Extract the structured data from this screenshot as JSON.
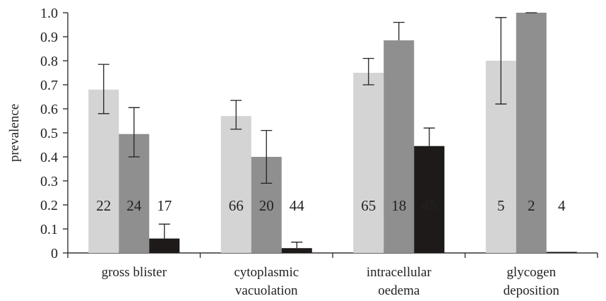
{
  "chart_data": {
    "type": "bar",
    "title": "",
    "xlabel": "",
    "ylabel": "prevalence",
    "ylim": [
      0,
      1.0
    ],
    "yticks": [
      "0",
      "0.1",
      "0.2",
      "0.3",
      "0.4",
      "0.5",
      "0.6",
      "0.7",
      "0.8",
      "0.9",
      "1.0"
    ],
    "grid": false,
    "legend": "none",
    "categories": [
      [
        "gross blister"
      ],
      [
        "cytoplasmic",
        "vacuolation"
      ],
      [
        "intracellular",
        "oedema"
      ],
      [
        "glycogen",
        "deposition"
      ]
    ],
    "series": [
      {
        "color": "#d4d4d4",
        "values": [
          0.68,
          0.57,
          0.75,
          0.8
        ],
        "err_low": [
          0.58,
          0.515,
          0.7,
          0.62
        ],
        "err_high": [
          0.785,
          0.635,
          0.81,
          0.98
        ],
        "n": [
          "22",
          "66",
          "65",
          "5"
        ],
        "n_color": "#222222"
      },
      {
        "color": "#8f8f8f",
        "values": [
          0.495,
          0.4,
          0.885,
          1.0
        ],
        "err_low": [
          0.4,
          0.29,
          null,
          null
        ],
        "err_high": [
          0.605,
          0.51,
          0.96,
          null
        ],
        "n": [
          "24",
          "20",
          "18",
          "2"
        ],
        "n_color": "#222222"
      },
      {
        "color": "#1e1a1a",
        "values": [
          0.06,
          0.02,
          0.445,
          0.0
        ],
        "err_low": [
          null,
          null,
          null,
          null
        ],
        "err_high": [
          0.12,
          0.045,
          0.52,
          null
        ],
        "n": [
          "17",
          "44",
          "45",
          "4"
        ],
        "n_color": [
          "#222222",
          "#222222",
          "#ffffff",
          "#222222"
        ]
      }
    ]
  }
}
